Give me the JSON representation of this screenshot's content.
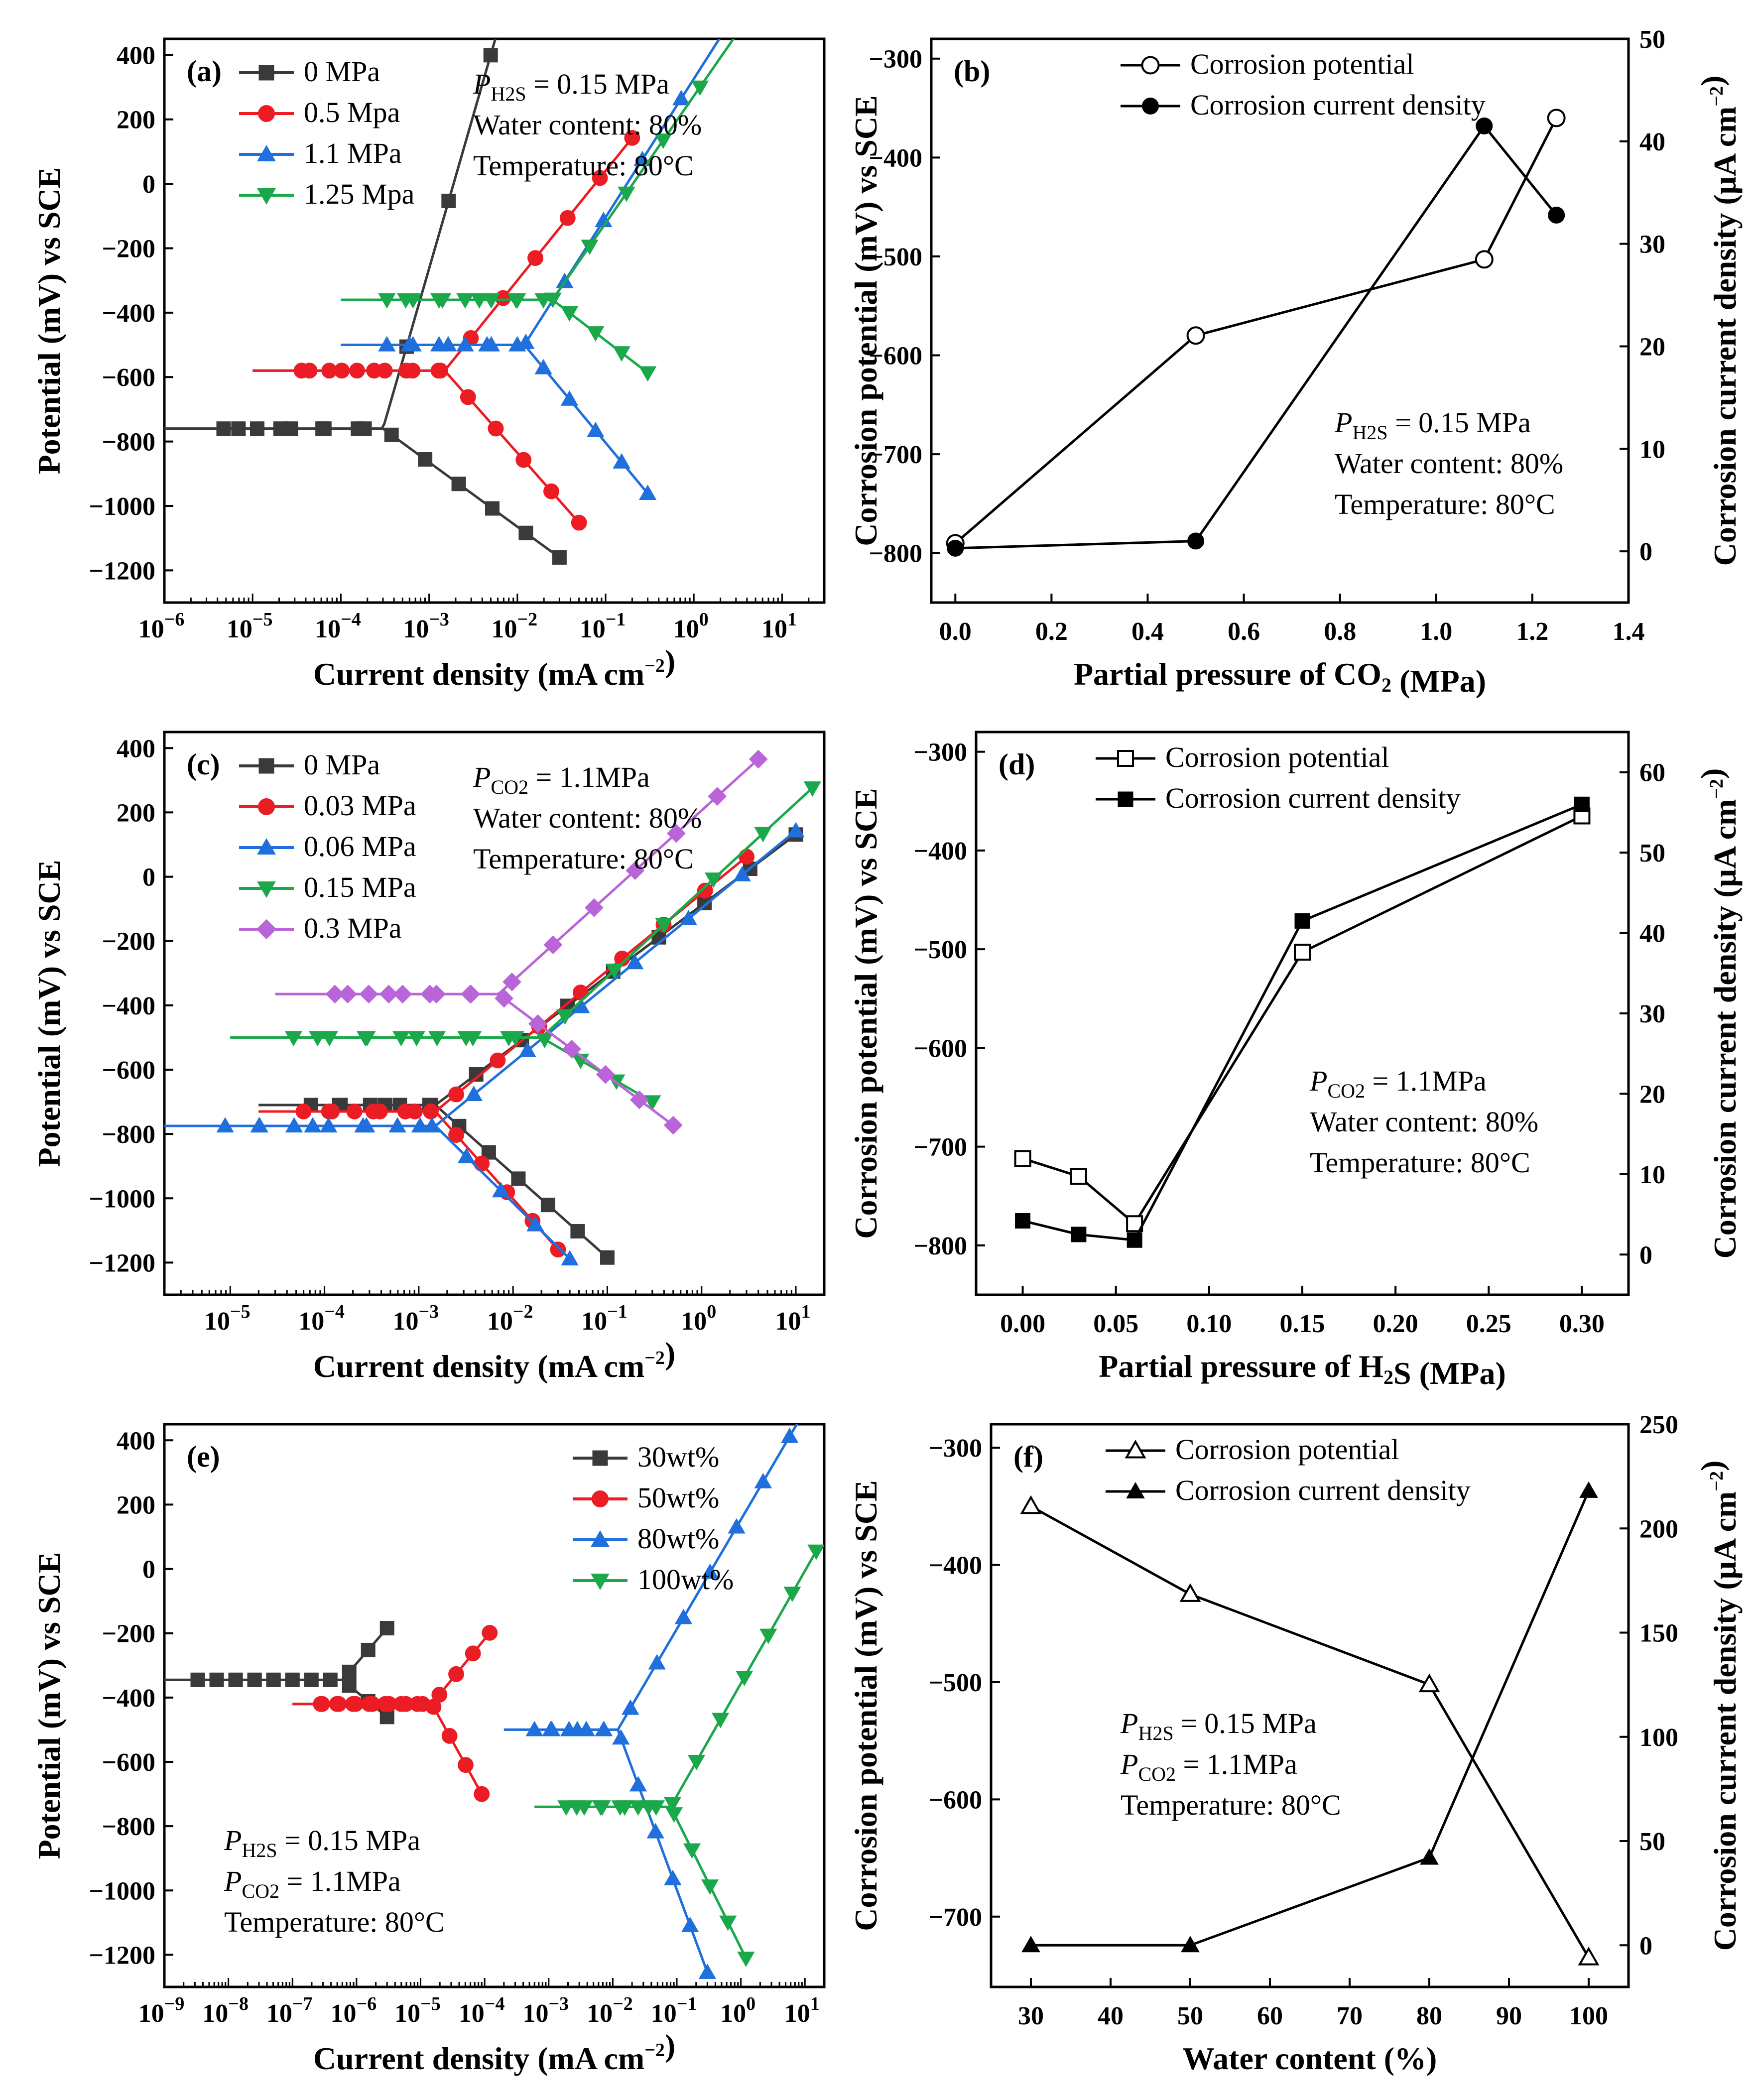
{
  "colors": {
    "black": "#3a3a3a",
    "red": "#ec1c24",
    "blue": "#1f6fdc",
    "green": "#1ba84a",
    "purple": "#b964d8"
  },
  "chart_data": [
    {
      "id": "a",
      "type": "line",
      "panel_label": "(a)",
      "xlabel": "Current  density (mA cm⁻²)",
      "ylabel": "Potential (mV) vs SCE",
      "xscale": "log",
      "xlim": [
        1e-06,
        30
      ],
      "ylim": [
        -1300,
        450
      ],
      "yticks": [
        -1200,
        -1000,
        -800,
        -600,
        -400,
        -200,
        0,
        200,
        400
      ],
      "xticks_exp": [
        -6,
        -5,
        -4,
        -3,
        -2,
        -1,
        0,
        1
      ],
      "legend_position": "top-left",
      "annotations": [
        "P(H₂S) = 0.15 MPa",
        "Water content: 80%",
        "Temperature: 80°C"
      ],
      "series": [
        {
          "name": "0 MPa",
          "color": "black",
          "marker": "square",
          "ecorr": -760,
          "icorr": 0.0003,
          "ba": 950,
          "bc": 200,
          "i_start": 1e-06,
          "i_end_a": 0.4,
          "i_end_c": 0.03
        },
        {
          "name": "0.5 Mpa",
          "color": "red",
          "marker": "circle",
          "ecorr": -580,
          "icorr": 0.0015,
          "ba": 340,
          "bc": 310,
          "i_start": 1e-05,
          "i_end_a": 0.2,
          "i_end_c": 0.05
        },
        {
          "name": "1.1 MPa",
          "color": "blue",
          "marker": "triangle-up",
          "ecorr": -500,
          "icorr": 0.012,
          "ba": 430,
          "bc": 330,
          "i_start": 0.0001,
          "i_end_a": 15,
          "i_end_c": 0.3
        },
        {
          "name": "1.25 Mpa",
          "color": "green",
          "marker": "triangle-down",
          "ecorr": -360,
          "icorr": 0.025,
          "ba": 395,
          "bc": 210,
          "i_start": 0.0001,
          "i_end_a": 8,
          "i_end_c": 0.3
        }
      ]
    },
    {
      "id": "b",
      "type": "line",
      "panel_label": "(b)",
      "xlabel": "Partial pressure of CO₂ (MPa)",
      "ylabel_left": "Corrosion potential (mV) vs SCE",
      "ylabel_right": "Corrosion current density (μA cm⁻²)",
      "xlim": [
        -0.05,
        1.4
      ],
      "ylim_left": [
        -850,
        -280
      ],
      "ylim_right": [
        -5,
        50
      ],
      "xticks": [
        0.0,
        0.2,
        0.4,
        0.6,
        0.8,
        1.0,
        1.2,
        1.4
      ],
      "yticks_left": [
        -800,
        -700,
        -600,
        -500,
        -400,
        -300
      ],
      "yticks_right": [
        0,
        10,
        20,
        30,
        40,
        50
      ],
      "legend_position": "top-left",
      "annotations": [
        "P(H₂S) = 0.15 MPa",
        "Water content: 80%",
        "Temperature: 80°C"
      ],
      "x": [
        0,
        0.5,
        1.1,
        1.25
      ],
      "series": [
        {
          "name": "Corrosion potential",
          "axis": "left",
          "marker": "circle-open",
          "values": [
            -790,
            -580,
            -503,
            -360
          ]
        },
        {
          "name": "Corrosion current density",
          "axis": "right",
          "marker": "circle-filled",
          "values": [
            0.3,
            1.0,
            41.5,
            32.8
          ]
        }
      ]
    },
    {
      "id": "c",
      "type": "line",
      "panel_label": "(c)",
      "xlabel": "Current  density (mA cm⁻²)",
      "ylabel": "Potential (mV) vs SCE",
      "xscale": "log",
      "xlim": [
        2e-06,
        20
      ],
      "ylim": [
        -1300,
        450
      ],
      "yticks": [
        -1200,
        -1000,
        -800,
        -600,
        -400,
        -200,
        0,
        200,
        400
      ],
      "xticks_exp": [
        -5,
        -4,
        -3,
        -2,
        -1,
        0,
        1
      ],
      "legend_position": "top-left",
      "annotations": [
        "P(CO₂) = 1.1MPa",
        "Water content: 80%",
        "Temperature: 80°C"
      ],
      "series": [
        {
          "name": "0 MPa",
          "color": "black",
          "marker": "square",
          "ecorr": -710,
          "icorr": 0.0015,
          "ba": 220,
          "bc": 260,
          "i_start": 2e-05,
          "i_end_a": 10,
          "i_end_c": 0.1
        },
        {
          "name": "0.03 MPa",
          "color": "red",
          "marker": "circle",
          "ecorr": -730,
          "icorr": 0.0015,
          "ba": 240,
          "bc": 330,
          "i_start": 2e-05,
          "i_end_a": 3,
          "i_end_c": 0.03
        },
        {
          "name": "0.06 MPa",
          "color": "blue",
          "marker": "triangle-up",
          "ecorr": -775,
          "icorr": 0.0015,
          "ba": 240,
          "bc": 290,
          "i_start": 2e-06,
          "i_end_a": 10,
          "i_end_c": 0.04
        },
        {
          "name": "0.15 MPa",
          "color": "green",
          "marker": "triangle-down",
          "ecorr": -500,
          "icorr": 0.02,
          "ba": 270,
          "bc": 170,
          "i_start": 1e-05,
          "i_end_a": 15,
          "i_end_c": 0.3
        },
        {
          "name": "0.3 MPa",
          "color": "purple",
          "marker": "diamond",
          "ecorr": -365,
          "icorr": 0.007,
          "ba": 265,
          "bc": 220,
          "i_start": 3e-05,
          "i_end_a": 4,
          "i_end_c": 0.5
        }
      ]
    },
    {
      "id": "d",
      "type": "line",
      "panel_label": "(d)",
      "xlabel": "Partial pressure of H₂S (MPa)",
      "ylabel_left": "Corrosion potential (mV) vs SCE",
      "ylabel_right": "Corrosion current density (μA cm⁻²)",
      "xlim": [
        -0.025,
        0.325
      ],
      "ylim_left": [
        -850,
        -280
      ],
      "ylim_right": [
        -5,
        65
      ],
      "xticks": [
        0.0,
        0.05,
        0.1,
        0.15,
        0.2,
        0.25,
        0.3
      ],
      "yticks_left": [
        -800,
        -700,
        -600,
        -500,
        -400,
        -300
      ],
      "yticks_right": [
        0,
        10,
        20,
        30,
        40,
        50,
        60
      ],
      "legend_position": "top-left",
      "annotations": [
        "P(CO₂) = 1.1MPa",
        "Water content: 80%",
        "Temperature: 80°C"
      ],
      "x": [
        0,
        0.03,
        0.06,
        0.15,
        0.3
      ],
      "series": [
        {
          "name": "Corrosion potential",
          "axis": "left",
          "marker": "square-open",
          "values": [
            -712,
            -730,
            -778,
            -503,
            -365
          ]
        },
        {
          "name": "Corrosion current density",
          "axis": "right",
          "marker": "square-filled",
          "values": [
            4.2,
            2.5,
            1.8,
            41.5,
            56.0
          ]
        }
      ]
    },
    {
      "id": "e",
      "type": "line",
      "panel_label": "(e)",
      "xlabel": "Current density (mA cm⁻²)",
      "ylabel": "Potential (mV) vs SCE",
      "xscale": "log",
      "xlim": [
        1e-09,
        20
      ],
      "ylim": [
        -1300,
        450
      ],
      "yticks": [
        -1200,
        -1000,
        -800,
        -600,
        -400,
        -200,
        0,
        200,
        400
      ],
      "xticks_exp": [
        -9,
        -8,
        -7,
        -6,
        -5,
        -4,
        -3,
        -2,
        -1,
        0,
        1
      ],
      "legend_position": "top-right",
      "annotations": [
        "P(H₂S) = 0.15 MPa",
        "P(CO₂) = 1.1MPa",
        "Temperature: 80°C"
      ],
      "series": [
        {
          "name": "30wt%",
          "color": "black",
          "marker": "square",
          "ecorr": -345,
          "icorr": 6e-07,
          "ba": 230,
          "bc": 165,
          "i_start": 1e-09,
          "i_end_a": 3e-06,
          "i_end_c": 3e-06
        },
        {
          "name": "50wt%",
          "color": "red",
          "marker": "circle",
          "ecorr": -420,
          "icorr": 1.5e-05,
          "ba": 245,
          "bc": 360,
          "i_start": 1e-07,
          "i_end_a": 0.00012,
          "i_end_c": 9e-05
        },
        {
          "name": "80wt%",
          "color": "blue",
          "marker": "triangle-up",
          "ecorr": -500,
          "icorr": 0.012,
          "ba": 340,
          "bc": 540,
          "i_start": 0.0002,
          "i_end_a": 15,
          "i_end_c": 0.3
        },
        {
          "name": "100wt%",
          "color": "green",
          "marker": "triangle-down",
          "ecorr": -740,
          "icorr": 0.08,
          "ba": 350,
          "bc": 400,
          "i_start": 0.0006,
          "i_end_a": 15,
          "i_end_c": 1.2
        }
      ]
    },
    {
      "id": "f",
      "type": "line",
      "panel_label": "(f)",
      "xlabel": "Water content (%)",
      "ylabel_left": "Corrosion potential (mV) vs SCE",
      "ylabel_right": "Corrosion current density (μA cm⁻²)",
      "xlim": [
        25,
        105
      ],
      "ylim_left": [
        -760,
        -280
      ],
      "ylim_right": [
        -20,
        250
      ],
      "xticks": [
        30,
        40,
        50,
        60,
        70,
        80,
        90,
        100
      ],
      "yticks_left": [
        -700,
        -600,
        -500,
        -400,
        -300
      ],
      "yticks_right": [
        0,
        50,
        100,
        150,
        200,
        250
      ],
      "legend_position": "top-left",
      "annotations": [
        "P(H₂S) = 0.15 MPa",
        "P(CO₂) = 1.1MPa",
        "Temperature: 80°C"
      ],
      "x": [
        30,
        50,
        80,
        100
      ],
      "series": [
        {
          "name": "Corrosion potential",
          "axis": "left",
          "marker": "triangle-open",
          "values": [
            -350,
            -425,
            -502,
            -735
          ]
        },
        {
          "name": "Corrosion current density",
          "axis": "right",
          "marker": "triangle-filled",
          "values": [
            0,
            0,
            42,
            218
          ]
        }
      ]
    }
  ]
}
